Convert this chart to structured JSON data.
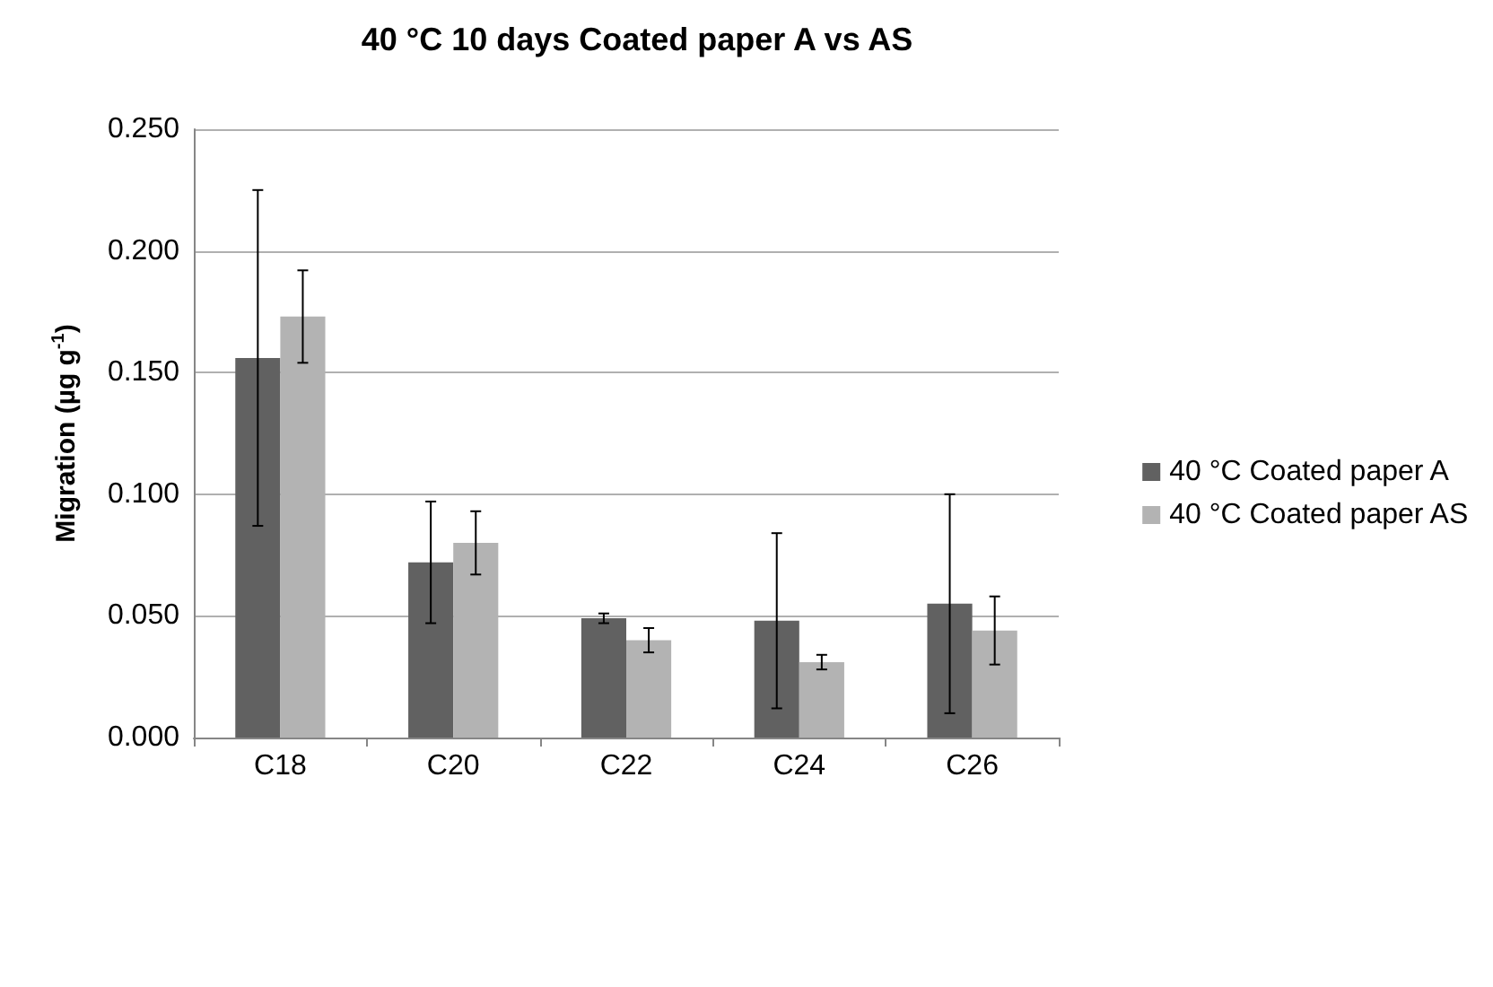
{
  "chart_data": {
    "type": "bar",
    "title": "40 °C 10 days Coated paper A vs AS",
    "ylabel": "Migration (µg g$^{-1}$)",
    "categories": [
      "C18",
      "C20",
      "C22",
      "C24",
      "C26"
    ],
    "series": [
      {
        "name": "40 °C Coated paper A",
        "color": "#616161",
        "values": [
          0.156,
          0.072,
          0.049,
          0.048,
          0.055
        ],
        "errors": [
          0.069,
          0.025,
          0.002,
          0.036,
          0.045
        ]
      },
      {
        "name": "40 °C Coated paper AS",
        "color": "#b3b3b3",
        "values": [
          0.173,
          0.08,
          0.04,
          0.031,
          0.044
        ],
        "errors": [
          0.019,
          0.013,
          0.005,
          0.003,
          0.014
        ]
      }
    ],
    "ylim": [
      0,
      0.25
    ],
    "yticks": [
      {
        "value": 0,
        "label": "0.000"
      },
      {
        "value": 0.05,
        "label": "0.050"
      },
      {
        "value": 0.1,
        "label": "0.100"
      },
      {
        "value": 0.15,
        "label": "0.150"
      },
      {
        "value": 0.2,
        "label": "0.200"
      },
      {
        "value": 0.25,
        "label": "0.250"
      }
    ],
    "grid": "y",
    "legend": "right"
  }
}
